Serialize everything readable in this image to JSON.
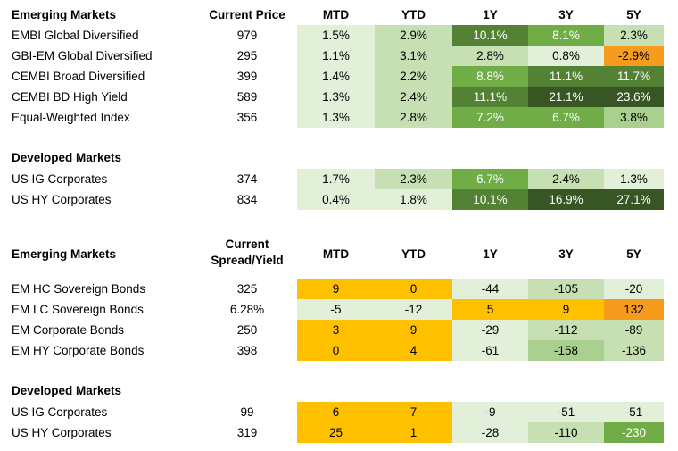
{
  "table1": {
    "section_title": "Emerging Markets",
    "price_header": "Current Price",
    "col_headers": [
      "MTD",
      "YTD",
      "1Y",
      "3Y",
      "5Y"
    ],
    "rows": [
      {
        "name": "EMBI Global Diversified",
        "price": "979",
        "cells": [
          {
            "text": "1.5%",
            "bg": "#e2efd9"
          },
          {
            "text": "2.9%",
            "bg": "#c6e0b4"
          },
          {
            "text": "10.1%",
            "bg": "#548235"
          },
          {
            "text": "8.1%",
            "bg": "#70ad47"
          },
          {
            "text": "2.3%",
            "bg": "#c6e0b4"
          }
        ]
      },
      {
        "name": "GBI-EM Global Diversified",
        "price": "295",
        "cells": [
          {
            "text": "1.1%",
            "bg": "#e2efd9"
          },
          {
            "text": "3.1%",
            "bg": "#c6e0b4"
          },
          {
            "text": "2.8%",
            "bg": "#c6e0b4"
          },
          {
            "text": "0.8%",
            "bg": "#e2efd9"
          },
          {
            "text": "-2.9%",
            "bg": "#f79b1e"
          }
        ]
      },
      {
        "name": "CEMBI Broad Diversified",
        "price": "399",
        "cells": [
          {
            "text": "1.4%",
            "bg": "#e2efd9"
          },
          {
            "text": "2.2%",
            "bg": "#c6e0b4"
          },
          {
            "text": "8.8%",
            "bg": "#70ad47"
          },
          {
            "text": "11.1%",
            "bg": "#548235"
          },
          {
            "text": "11.7%",
            "bg": "#548235"
          }
        ]
      },
      {
        "name": "CEMBI BD High Yield",
        "price": "589",
        "cells": [
          {
            "text": "1.3%",
            "bg": "#e2efd9"
          },
          {
            "text": "2.4%",
            "bg": "#c6e0b4"
          },
          {
            "text": "11.1%",
            "bg": "#548235"
          },
          {
            "text": "21.1%",
            "bg": "#375623"
          },
          {
            "text": "23.6%",
            "bg": "#375623"
          }
        ]
      },
      {
        "name": "Equal-Weighted Index",
        "price": "356",
        "cells": [
          {
            "text": "1.3%",
            "bg": "#e2efd9"
          },
          {
            "text": "2.8%",
            "bg": "#c6e0b4"
          },
          {
            "text": "7.2%",
            "bg": "#70ad47"
          },
          {
            "text": "6.7%",
            "bg": "#70ad47"
          },
          {
            "text": "3.8%",
            "bg": "#a9d08e"
          }
        ]
      }
    ],
    "sub_title": "Developed Markets",
    "sub_rows": [
      {
        "name": "US IG Corporates",
        "price": "374",
        "cells": [
          {
            "text": "1.7%",
            "bg": "#e2efd9"
          },
          {
            "text": "2.3%",
            "bg": "#c6e0b4"
          },
          {
            "text": "6.7%",
            "bg": "#70ad47"
          },
          {
            "text": "2.4%",
            "bg": "#c6e0b4"
          },
          {
            "text": "1.3%",
            "bg": "#e2efd9"
          }
        ]
      },
      {
        "name": "US HY Corporates",
        "price": "834",
        "cells": [
          {
            "text": "0.4%",
            "bg": "#e2efd9"
          },
          {
            "text": "1.8%",
            "bg": "#e2efd9"
          },
          {
            "text": "10.1%",
            "bg": "#548235"
          },
          {
            "text": "16.9%",
            "bg": "#375623"
          },
          {
            "text": "27.1%",
            "bg": "#375623"
          }
        ]
      }
    ]
  },
  "table2": {
    "section_title": "Emerging Markets",
    "price_header_line1": "Current",
    "price_header_line2": "Spread/Yield",
    "col_headers": [
      "MTD",
      "YTD",
      "1Y",
      "3Y",
      "5Y"
    ],
    "rows": [
      {
        "name": "EM HC Sovereign Bonds",
        "price": "325",
        "cells": [
          {
            "text": "9",
            "bg": "#ffc000"
          },
          {
            "text": "0",
            "bg": "#ffc000"
          },
          {
            "text": "-44",
            "bg": "#e2efd9"
          },
          {
            "text": "-105",
            "bg": "#c6e0b4"
          },
          {
            "text": "-20",
            "bg": "#e2efd9"
          }
        ]
      },
      {
        "name": "EM LC Sovereign Bonds",
        "price": "6.28%",
        "cells": [
          {
            "text": "-5",
            "bg": "#e2efd9"
          },
          {
            "text": "-12",
            "bg": "#e2efd9"
          },
          {
            "text": "5",
            "bg": "#ffc000"
          },
          {
            "text": "9",
            "bg": "#ffc000"
          },
          {
            "text": "132",
            "bg": "#f79b1e"
          }
        ]
      },
      {
        "name": "EM Corporate Bonds",
        "price": "250",
        "cells": [
          {
            "text": "3",
            "bg": "#ffc000"
          },
          {
            "text": "9",
            "bg": "#ffc000"
          },
          {
            "text": "-29",
            "bg": "#e2efd9"
          },
          {
            "text": "-112",
            "bg": "#c6e0b4"
          },
          {
            "text": "-89",
            "bg": "#c6e0b4"
          }
        ]
      },
      {
        "name": "EM HY Corporate Bonds",
        "price": "398",
        "cells": [
          {
            "text": "0",
            "bg": "#ffc000"
          },
          {
            "text": "4",
            "bg": "#ffc000"
          },
          {
            "text": "-61",
            "bg": "#e2efd9"
          },
          {
            "text": "-158",
            "bg": "#a9d08e"
          },
          {
            "text": "-136",
            "bg": "#c6e0b4"
          }
        ]
      }
    ],
    "sub_title": "Developed Markets",
    "sub_rows": [
      {
        "name": "US IG Corporates",
        "price": "99",
        "cells": [
          {
            "text": "6",
            "bg": "#ffc000"
          },
          {
            "text": "7",
            "bg": "#ffc000"
          },
          {
            "text": "-9",
            "bg": "#e2efd9"
          },
          {
            "text": "-51",
            "bg": "#e2efd9"
          },
          {
            "text": "-51",
            "bg": "#e2efd9"
          }
        ]
      },
      {
        "name": "US HY Corporates",
        "price": "319",
        "cells": [
          {
            "text": "25",
            "bg": "#ffc000"
          },
          {
            "text": "1",
            "bg": "#ffc000"
          },
          {
            "text": "-28",
            "bg": "#e2efd9"
          },
          {
            "text": "-110",
            "bg": "#c6e0b4"
          },
          {
            "text": "-230",
            "bg": "#70ad47"
          }
        ]
      }
    ]
  },
  "chart_data": [
    {
      "type": "table",
      "columns": [
        "Current Price",
        "MTD",
        "YTD",
        "1Y",
        "3Y",
        "5Y"
      ],
      "groups": [
        {
          "name": "Emerging Markets",
          "rows": [
            {
              "name": "EMBI Global Diversified",
              "values": [
                979,
                1.5,
                2.9,
                10.1,
                8.1,
                2.3
              ]
            },
            {
              "name": "GBI-EM Global Diversified",
              "values": [
                295,
                1.1,
                3.1,
                2.8,
                0.8,
                -2.9
              ]
            },
            {
              "name": "CEMBI Broad Diversified",
              "values": [
                399,
                1.4,
                2.2,
                8.8,
                11.1,
                11.7
              ]
            },
            {
              "name": "CEMBI BD High Yield",
              "values": [
                589,
                1.3,
                2.4,
                11.1,
                21.1,
                23.6
              ]
            },
            {
              "name": "Equal-Weighted Index",
              "values": [
                356,
                1.3,
                2.8,
                7.2,
                6.7,
                3.8
              ]
            }
          ]
        },
        {
          "name": "Developed Markets",
          "rows": [
            {
              "name": "US IG Corporates",
              "values": [
                374,
                1.7,
                2.3,
                6.7,
                2.4,
                1.3
              ]
            },
            {
              "name": "US HY Corporates",
              "values": [
                834,
                0.4,
                1.8,
                10.1,
                16.9,
                27.1
              ]
            }
          ]
        }
      ]
    },
    {
      "type": "table",
      "columns": [
        "Current Spread/Yield",
        "MTD",
        "YTD",
        "1Y",
        "3Y",
        "5Y"
      ],
      "groups": [
        {
          "name": "Emerging Markets",
          "rows": [
            {
              "name": "EM HC Sovereign Bonds",
              "values": [
                "325",
                9,
                0,
                -44,
                -105,
                -20
              ]
            },
            {
              "name": "EM LC Sovereign Bonds",
              "values": [
                "6.28%",
                -5,
                -12,
                5,
                9,
                132
              ]
            },
            {
              "name": "EM Corporate Bonds",
              "values": [
                "250",
                3,
                9,
                -29,
                -112,
                -89
              ]
            },
            {
              "name": "EM HY Corporate Bonds",
              "values": [
                "398",
                0,
                4,
                -61,
                -158,
                -136
              ]
            }
          ]
        },
        {
          "name": "Developed Markets",
          "rows": [
            {
              "name": "US IG Corporates",
              "values": [
                "99",
                6,
                7,
                -9,
                -51,
                -51
              ]
            },
            {
              "name": "US HY Corporates",
              "values": [
                "319",
                25,
                1,
                -28,
                -110,
                -230
              ]
            }
          ]
        }
      ]
    }
  ]
}
